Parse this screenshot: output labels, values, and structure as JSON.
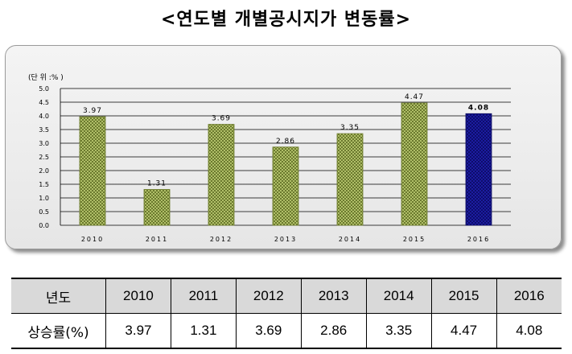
{
  "title": "<연도별 개별공시지가 변동률>",
  "chart_data": {
    "type": "bar",
    "unit_label": "(단 위 :% )",
    "categories": [
      "2010",
      "2011",
      "2012",
      "2013",
      "2014",
      "2015",
      "2016"
    ],
    "values": [
      3.97,
      1.31,
      3.69,
      2.86,
      3.35,
      4.47,
      4.08
    ],
    "data_labels": [
      "3.97",
      "1.31",
      "3.69",
      "2.86",
      "3.35",
      "4.47",
      "4.08"
    ],
    "yticks": [
      "0.0",
      "0.5",
      "1.0",
      "1.5",
      "2.0",
      "2.5",
      "3.0",
      "3.5",
      "4.0",
      "4.5",
      "5.0"
    ],
    "ylim": [
      0,
      5.0
    ],
    "grid": true,
    "colors": {
      "bar": "#b8c96a",
      "bar_dark": "#6b7a2a",
      "highlight_bar": "#1a1aa0",
      "highlight_dark": "#0a0a60"
    },
    "highlight_index": 6
  },
  "table": {
    "header_label": "년도",
    "row_label": "상승률(%)",
    "years": [
      "2010",
      "2011",
      "2012",
      "2013",
      "2014",
      "2015",
      "2016"
    ],
    "values": [
      "3.97",
      "1.31",
      "3.69",
      "2.86",
      "3.35",
      "4.47",
      "4.08"
    ]
  }
}
